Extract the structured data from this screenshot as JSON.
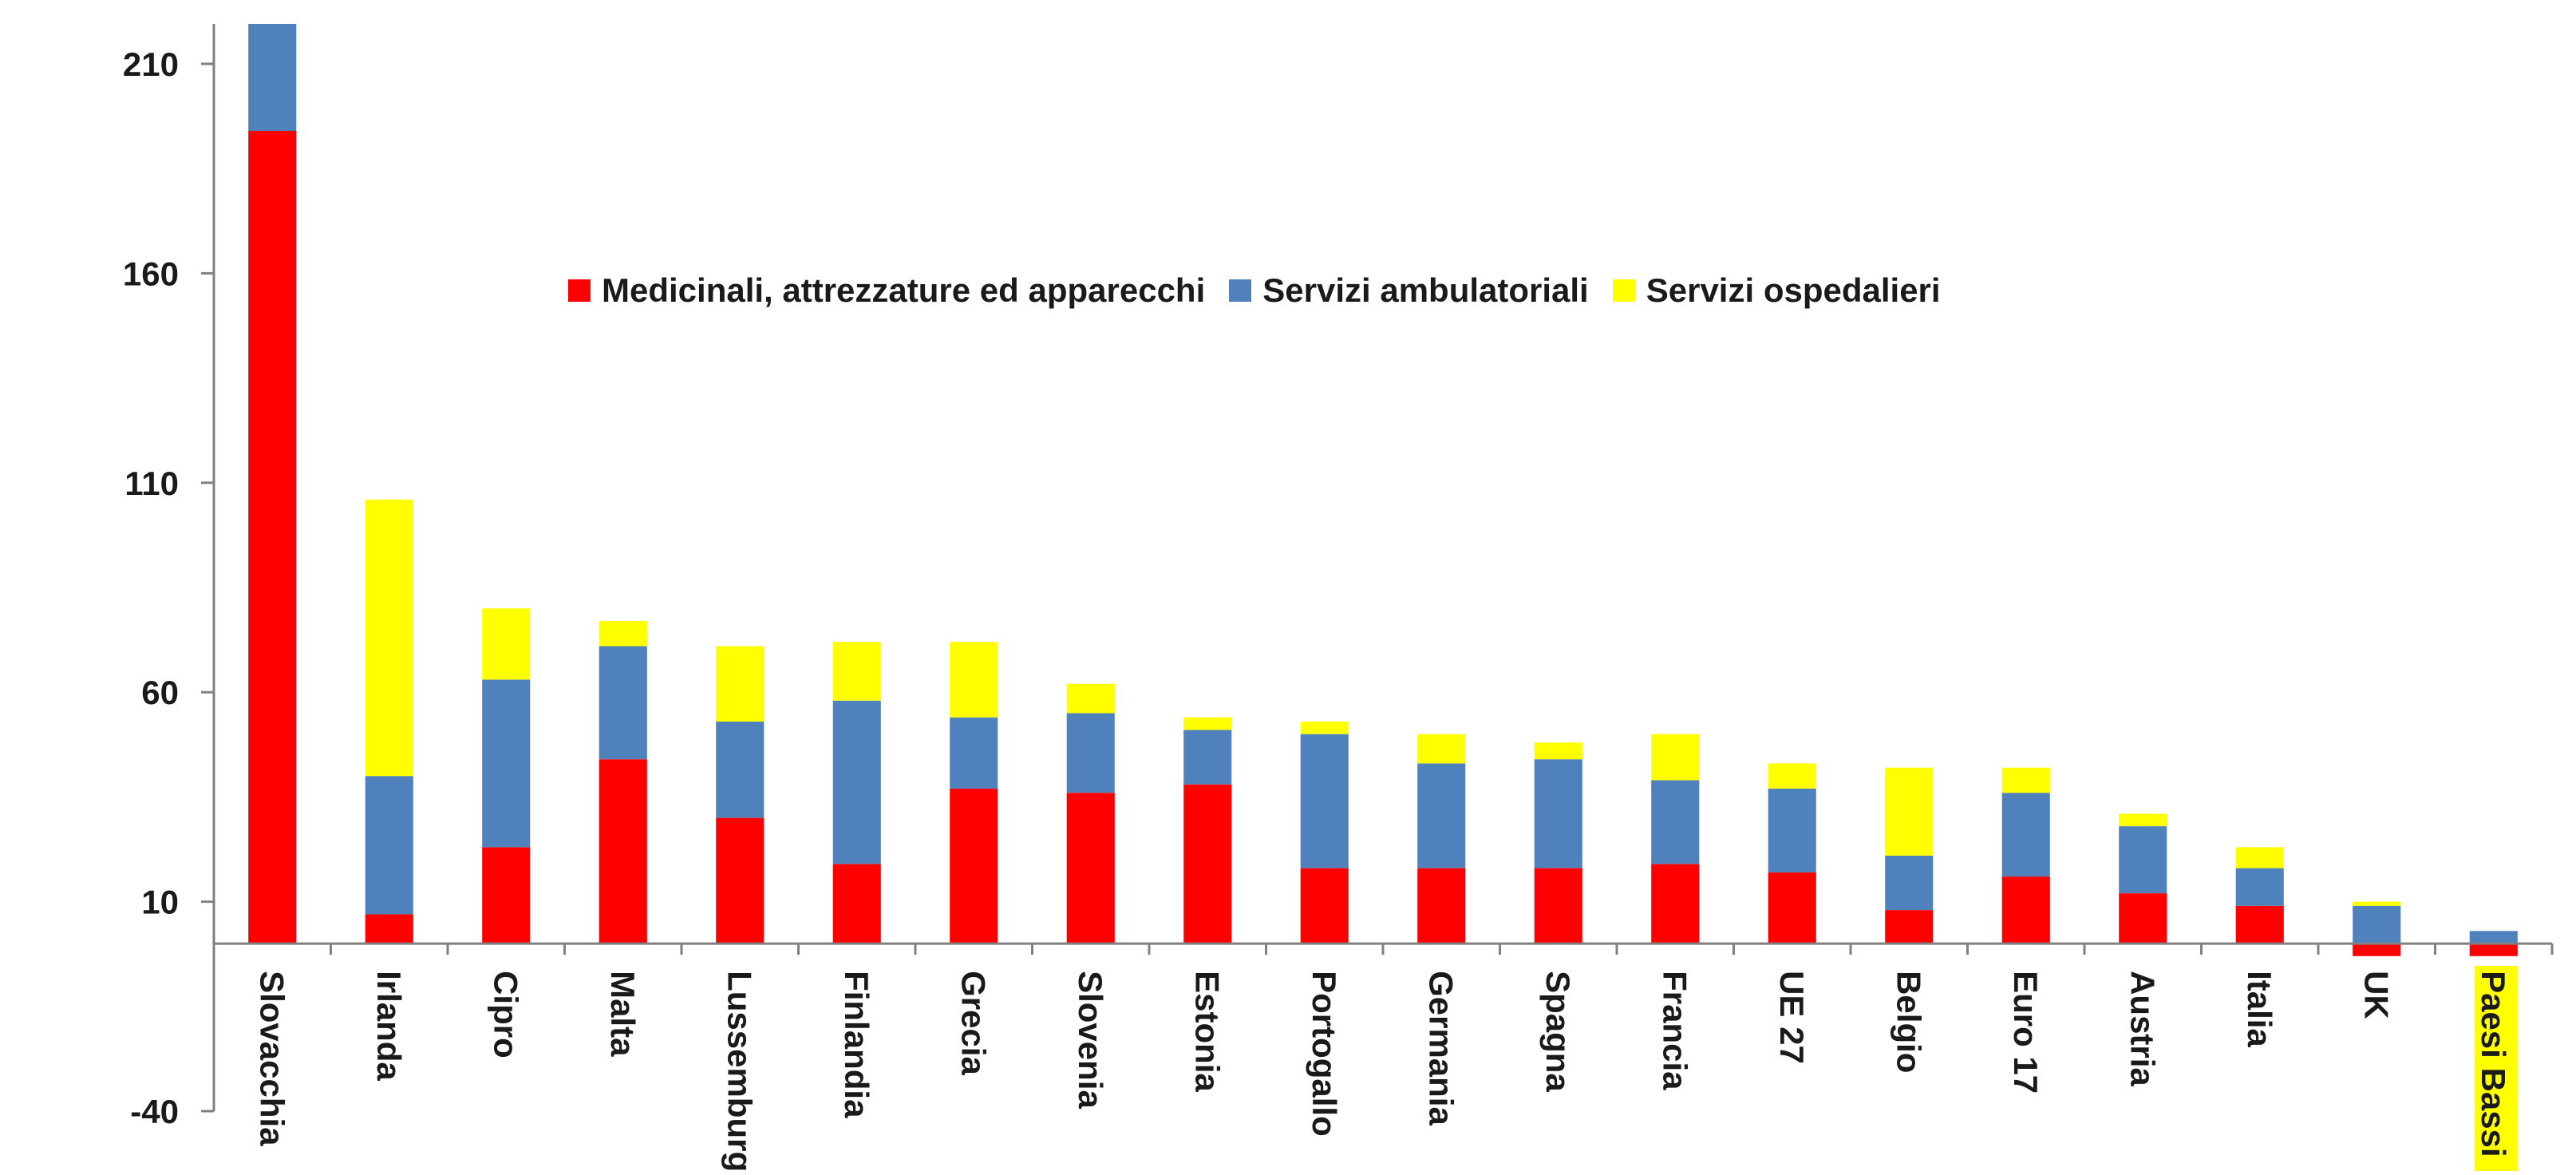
{
  "chart_data": {
    "type": "bar",
    "stacked": true,
    "categories": [
      "Slovacchia",
      "Irlanda",
      "Cipro",
      "Malta",
      "Lussemburgo",
      "Finlandia",
      "Grecia",
      "Slovenia",
      "Estonia",
      "Portogallo",
      "Germania",
      "Spagna",
      "Francia",
      "UE 27",
      "Belgio",
      "Euro 17",
      "Austria",
      "Italia",
      "UK",
      "Paesi Bassi"
    ],
    "highlighted_category": "Paesi Bassi",
    "highlight_color": "#FFFF00",
    "series": [
      {
        "name": "Medicinali, attrezzature ed apparecchi",
        "color": "#FF0000",
        "values": [
          194,
          7,
          23,
          44,
          30,
          19,
          37,
          36,
          38,
          18,
          18,
          18,
          19,
          17,
          8,
          16,
          12,
          9,
          -3,
          -3
        ]
      },
      {
        "name": "Servizi ambulatoriali",
        "color": "#4F81BD",
        "values": [
          27,
          33,
          40,
          27,
          23,
          39,
          17,
          19,
          13,
          32,
          25,
          26,
          20,
          20,
          13,
          20,
          16,
          9,
          9,
          3
        ]
      },
      {
        "name": "Servizi ospedalieri",
        "color": "#FFFF00",
        "values": [
          0,
          66,
          17,
          6,
          18,
          14,
          18,
          7,
          3,
          3,
          7,
          4,
          11,
          6,
          21,
          6,
          3,
          5,
          1,
          0
        ]
      }
    ],
    "yticks": [
      "210",
      "160",
      "110",
      "60",
      "10",
      "-40"
    ],
    "ylim": [
      -40,
      220
    ],
    "legend_position": "top-center",
    "grid": false,
    "title": "",
    "xlabel": "",
    "ylabel": ""
  }
}
